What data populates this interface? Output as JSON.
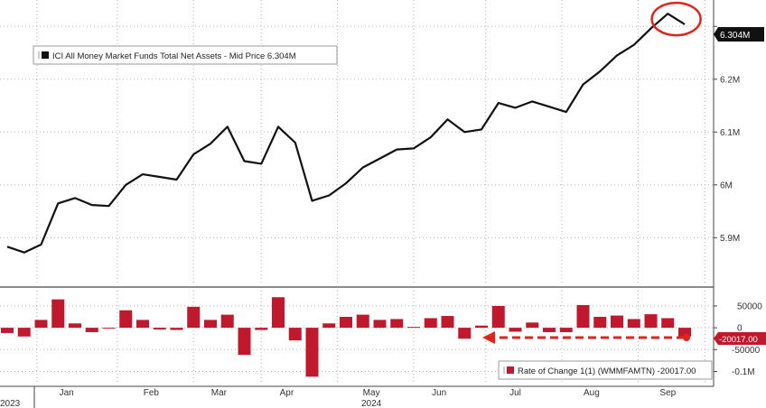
{
  "chart_data": [
    {
      "type": "line",
      "legend": "ICI All Money Market Funds Total Net Assets - Mid Price 6.304M",
      "last_value_label": "6.304M",
      "color": "#111111",
      "ylim": [
        5.81,
        6.35
      ],
      "y_ticks": [
        {
          "value": 5.9,
          "label": "5.9M"
        },
        {
          "value": 6.0,
          "label": "6M"
        },
        {
          "value": 6.1,
          "label": "6.1M"
        },
        {
          "value": 6.2,
          "label": "6.2M"
        },
        {
          "value": 6.3,
          "label": "6.3M"
        }
      ],
      "values": [
        5.883,
        5.872,
        5.887,
        5.965,
        5.975,
        5.962,
        5.96,
        6.0,
        6.02,
        6.015,
        6.01,
        6.058,
        6.078,
        6.11,
        6.045,
        6.04,
        6.11,
        6.08,
        5.97,
        5.98,
        6.003,
        6.033,
        6.05,
        6.067,
        6.069,
        6.09,
        6.124,
        6.1,
        6.105,
        6.155,
        6.146,
        6.158,
        6.148,
        6.138,
        6.19,
        6.215,
        6.245,
        6.265,
        6.296,
        6.324,
        6.304
      ],
      "highlight": "last-point-circle"
    },
    {
      "type": "bar",
      "legend": "Rate of Change 1(1) (WMMFAMTN) -20017.00",
      "last_value_label": "-20017.00",
      "color": "#c0182c",
      "ylim": [
        -130000,
        85000
      ],
      "y_ticks": [
        {
          "value": 50000,
          "label": "50000"
        },
        {
          "value": 0,
          "label": "0"
        },
        {
          "value": -50000,
          "label": "-50000"
        },
        {
          "value": -100000,
          "label": "-0.1M"
        }
      ],
      "values": [
        -12000,
        -20000,
        18000,
        65000,
        10000,
        -10000,
        -2000,
        40000,
        18000,
        -4000,
        -5000,
        48000,
        18000,
        30000,
        -62000,
        -5000,
        70000,
        -29000,
        -112000,
        10000,
        25000,
        30000,
        18000,
        20000,
        2000,
        22000,
        27000,
        -25000,
        5000,
        50000,
        -9000,
        12000,
        -10000,
        -10000,
        52000,
        25000,
        28000,
        20000,
        31000,
        22000,
        -20017
      ],
      "annotation": "dashed-arrow-left"
    }
  ],
  "x_axis": {
    "months": [
      {
        "label": "Jan",
        "index": 3.5
      },
      {
        "label": "Feb",
        "index": 8.5
      },
      {
        "label": "Mar",
        "index": 12.5
      },
      {
        "label": "Apr",
        "index": 16.5
      },
      {
        "label": "May",
        "index": 21.5
      },
      {
        "label": "Jun",
        "index": 25.5
      },
      {
        "label": "Jul",
        "index": 30
      },
      {
        "label": "Aug",
        "index": 34.5
      },
      {
        "label": "Sep",
        "index": 39
      }
    ],
    "years": [
      {
        "label": "2023",
        "index": 0
      },
      {
        "label": "2024",
        "index": 21.5
      }
    ],
    "year_divider_index": 1.6
  },
  "colors": {
    "grid": "#b5b5b5",
    "frame": "#888888",
    "highlight": "#e0241c",
    "badge": "#111111",
    "bar_badge": "#c0182c"
  }
}
